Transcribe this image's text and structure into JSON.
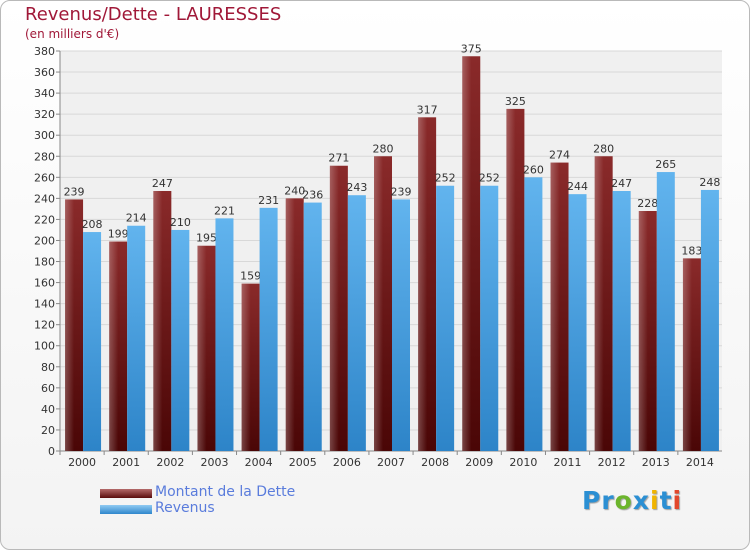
{
  "header": {
    "title": "Revenus/Dette - LAURESSES",
    "subtitle": "(en milliers d'€)"
  },
  "legend": {
    "items": [
      {
        "label": "Montant de la Dette",
        "color": "#7b1a1a"
      },
      {
        "label": "Revenus",
        "color": "#4ea3e4"
      }
    ]
  },
  "logo": {
    "text": "Proxiti",
    "letters": [
      {
        "ch": "P",
        "color": "#2b8fd3"
      },
      {
        "ch": "r",
        "color": "#2b8fd3"
      },
      {
        "ch": "o",
        "color": "#6cb52d"
      },
      {
        "ch": "x",
        "color": "#2b8fd3"
      },
      {
        "ch": "i",
        "color": "#f0b400"
      },
      {
        "ch": "t",
        "color": "#2b8fd3"
      },
      {
        "ch": "i",
        "color": "#e2482c"
      }
    ]
  },
  "chart_data": {
    "type": "bar",
    "title": "Revenus/Dette - LAURESSES",
    "subtitle": "(en milliers d'€)",
    "categories": [
      "2000",
      "2001",
      "2002",
      "2003",
      "2004",
      "2005",
      "2006",
      "2007",
      "2008",
      "2009",
      "2010",
      "2011",
      "2012",
      "2013",
      "2014"
    ],
    "series": [
      {
        "name": "Montant de la Dette",
        "color": "#7b1a1a",
        "values": [
          239,
          199,
          247,
          195,
          159,
          240,
          271,
          280,
          317,
          375,
          325,
          274,
          280,
          228,
          183
        ],
        "labels": [
          "239",
          "199",
          "247",
          "195",
          "159",
          "240",
          "271",
          "280",
          "317",
          "375",
          "325",
          "274",
          "280",
          "228",
          "183"
        ]
      },
      {
        "name": "Revenus",
        "color": "#4ea3e4",
        "values": [
          208,
          214,
          210,
          221,
          231,
          236,
          243,
          239,
          252,
          252,
          260,
          244,
          247,
          265,
          248
        ],
        "labels": [
          "208",
          "214",
          "210",
          "221",
          "231",
          "236",
          "243",
          "239",
          "252",
          "252",
          "260",
          "244",
          "247",
          "265",
          "248"
        ]
      }
    ],
    "ylim": [
      0,
      380
    ],
    "yticks": [
      0,
      20,
      40,
      60,
      80,
      100,
      120,
      140,
      160,
      180,
      200,
      220,
      240,
      260,
      280,
      300,
      320,
      340,
      360,
      380
    ],
    "grid": true,
    "legend": "bottom-left"
  }
}
